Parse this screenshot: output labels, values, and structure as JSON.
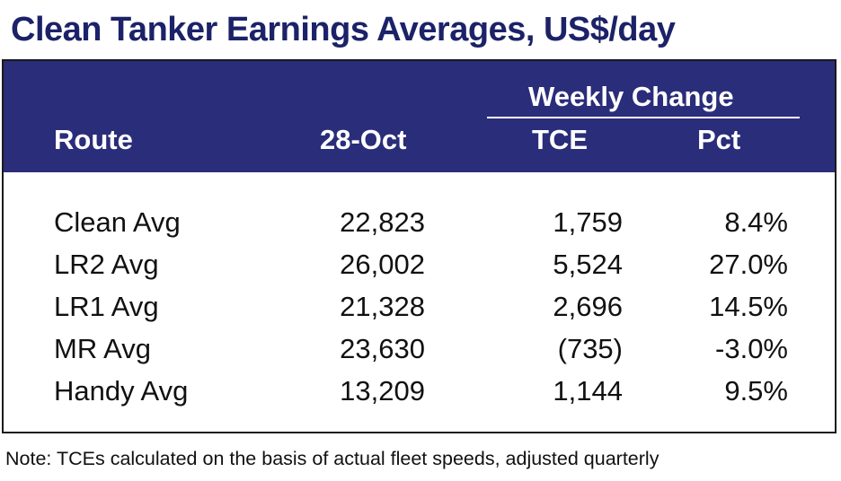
{
  "title": "Clean Tanker Earnings Averages, US$/day",
  "table": {
    "header": {
      "group_label": "Weekly Change",
      "route_label": "Route",
      "date_label": "28-Oct",
      "tce_label": "TCE",
      "pct_label": "Pct"
    },
    "rows": [
      {
        "route": "Clean Avg",
        "value": "22,823",
        "tce": "1,759",
        "pct": "8.4%"
      },
      {
        "route": "LR2 Avg",
        "value": "26,002",
        "tce": "5,524",
        "pct": "27.0%"
      },
      {
        "route": "LR1 Avg",
        "value": "21,328",
        "tce": "2,696",
        "pct": "14.5%"
      },
      {
        "route": "MR Avg",
        "value": "23,630",
        "tce": "(735)",
        "pct": "-3.0%"
      },
      {
        "route": "Handy Avg",
        "value": "13,209",
        "tce": "1,144",
        "pct": "9.5%"
      }
    ]
  },
  "note": "Note: TCEs calculated on the basis of actual fleet speeds, adjusted quarterly",
  "colors": {
    "title": "#1c2268",
    "header_background": "#2a2d7a",
    "header_text": "#ffffff",
    "border": "#1a1a1a"
  }
}
